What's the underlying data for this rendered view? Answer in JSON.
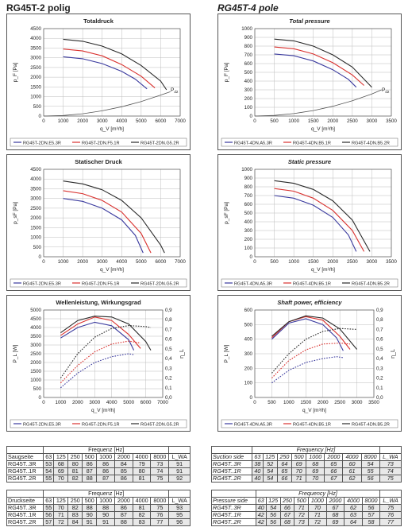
{
  "headings": {
    "left": "RG45T-2 polig",
    "right": "RG45T-4 pole"
  },
  "charts": [
    {
      "id": "c1",
      "title": "Totaldruck",
      "ylabel": "p_F [Pa]",
      "xlabel": "q_V [m³/h]",
      "y2label": "",
      "xmax": 7000,
      "xstep": 1000,
      "ymax": 4500,
      "ystep": 500,
      "y2max": null,
      "y2step": null,
      "annotation": "P_d2",
      "bold_italic": false
    },
    {
      "id": "c2",
      "title": "Total pressure",
      "ylabel": "p_F [Pa]",
      "xlabel": "q_V [m³/h]",
      "y2label": "",
      "xmax": 3500,
      "xstep": 500,
      "ymax": 1000,
      "ystep": 100,
      "y2max": null,
      "y2step": null,
      "annotation": "P_d2",
      "bold_italic": true
    },
    {
      "id": "c3",
      "title": "Statischer Druck",
      "ylabel": "p_sF [Pa]",
      "xlabel": "q_V [m³/h]",
      "y2label": "",
      "xmax": 7000,
      "xstep": 1000,
      "ymax": 4500,
      "ystep": 500,
      "y2max": null,
      "y2step": null,
      "annotation": "",
      "bold_italic": false
    },
    {
      "id": "c4",
      "title": "Static pressure",
      "ylabel": "p_sF [Pa]",
      "xlabel": "q_V [m³/h]",
      "y2label": "",
      "xmax": 3500,
      "xstep": 500,
      "ymax": 1000,
      "ystep": 100,
      "y2max": null,
      "y2step": null,
      "annotation": "",
      "bold_italic": true
    },
    {
      "id": "c5",
      "title": "Wellenleistung, Wirkungsgrad",
      "ylabel": "P_L [W]",
      "xlabel": "q_V [m³/h]",
      "y2label": "η_L",
      "xmax": 7000,
      "xstep": 1000,
      "ymax": 5000,
      "ystep": 500,
      "y2max": 0.9,
      "y2step": 0.1,
      "annotation": "",
      "bold_italic": false
    },
    {
      "id": "c6",
      "title": "Shaft power, efficiency",
      "ylabel": "P_L [W]",
      "xlabel": "q_V [m³/h]",
      "y2label": "η_L",
      "xmax": 3500,
      "xstep": 500,
      "ymax": 600,
      "ystep": 100,
      "y2max": 0.9,
      "y2step": 0.1,
      "annotation": "",
      "bold_italic": true
    }
  ],
  "legends": {
    "left": [
      "RG45T-2DN.E5.3R",
      "RG45T-2DN.F5.1R",
      "RG45T-2DN.G5.2R"
    ],
    "right": [
      "RG45T-4DN.A5.3R",
      "RG45T-4DN.B5.1R",
      "RG45T-4DN.B5.2R"
    ]
  },
  "colors": {
    "s1": "#3a3a9e",
    "s2": "#d9312e",
    "s3": "#2a2a2a"
  },
  "tables": {
    "left_top": {
      "header": "Frequenz [Hz]",
      "first": "Saugseite",
      "cols": [
        "63",
        "125",
        "250",
        "500",
        "1000",
        "2000",
        "4000",
        "8000",
        "L_WA"
      ],
      "rows": [
        [
          "RG45T..3R",
          "53",
          "68",
          "80",
          "86",
          "86",
          "84",
          "79",
          "73",
          "91"
        ],
        [
          "RG45T..1R",
          "54",
          "69",
          "81",
          "87",
          "86",
          "85",
          "80",
          "74",
          "91"
        ],
        [
          "RG45T..2R",
          "55",
          "70",
          "82",
          "88",
          "87",
          "86",
          "81",
          "75",
          "92"
        ]
      ]
    },
    "right_top": {
      "header": "Frequency [Hz]",
      "first": "Suction side",
      "cols": [
        "63",
        "125",
        "250",
        "500",
        "1000",
        "2000",
        "4000",
        "8000",
        "L_WA"
      ],
      "rows": [
        [
          "RG45T..3R",
          "38",
          "52",
          "64",
          "69",
          "68",
          "65",
          "60",
          "54",
          "73"
        ],
        [
          "RG45T..1R",
          "40",
          "54",
          "65",
          "70",
          "69",
          "66",
          "61",
          "55",
          "74"
        ],
        [
          "RG45T..2R",
          "40",
          "54",
          "66",
          "71",
          "70",
          "67",
          "62",
          "56",
          "75"
        ]
      ]
    },
    "left_bottom": {
      "header": "Frequenz [Hz]",
      "first": "Druckseite",
      "cols": [
        "63",
        "125",
        "250",
        "500",
        "1000",
        "2000",
        "4000",
        "8000",
        "L_WA"
      ],
      "rows": [
        [
          "RG45T..3R",
          "55",
          "70",
          "82",
          "88",
          "88",
          "86",
          "81",
          "75",
          "93"
        ],
        [
          "RG45T..1R",
          "56",
          "71",
          "83",
          "90",
          "90",
          "87",
          "82",
          "76",
          "95"
        ],
        [
          "RG45T..2R",
          "57",
          "72",
          "84",
          "91",
          "91",
          "88",
          "83",
          "77",
          "96"
        ]
      ]
    },
    "right_bottom": {
      "header": "Frequency [Hz]",
      "first": "Pressure side",
      "cols": [
        "63",
        "125",
        "250",
        "500",
        "1000",
        "2000",
        "4000",
        "8000",
        "L_WA"
      ],
      "rows": [
        [
          "RG45T..3R",
          "40",
          "54",
          "66",
          "71",
          "70",
          "67",
          "62",
          "56",
          "75"
        ],
        [
          "RG45T..1R",
          "42",
          "56",
          "67",
          "72",
          "71",
          "68",
          "63",
          "57",
          "76"
        ],
        [
          "RG45T..2R",
          "42",
          "56",
          "68",
          "73",
          "72",
          "69",
          "64",
          "58",
          "77"
        ]
      ]
    }
  },
  "chart_data": [
    {
      "type": "line",
      "id": "c1",
      "title": "Totaldruck",
      "xlabel": "q_V [m³/h]",
      "ylabel": "p_F [Pa]",
      "xlim": [
        0,
        7000
      ],
      "ylim": [
        0,
        4500
      ],
      "grid": true,
      "series": [
        {
          "name": "RG45T-2DN.E5.3R",
          "x": [
            1000,
            2000,
            3000,
            4000,
            4700,
            5300
          ],
          "y": [
            3050,
            2950,
            2700,
            2300,
            1900,
            1400
          ]
        },
        {
          "name": "RG45T-2DN.F5.1R",
          "x": [
            1000,
            2000,
            3000,
            4000,
            5000,
            5700
          ],
          "y": [
            3450,
            3350,
            3100,
            2650,
            2050,
            1450
          ]
        },
        {
          "name": "RG45T-2DN.G5.2R",
          "x": [
            1000,
            2000,
            3000,
            4000,
            5000,
            6000,
            6300
          ],
          "y": [
            3950,
            3850,
            3600,
            3200,
            2600,
            1800,
            1350
          ]
        },
        {
          "name": "P_d2",
          "x": [
            0,
            1000,
            2000,
            3000,
            4000,
            5000,
            6000,
            6500
          ],
          "y": [
            0,
            30,
            120,
            270,
            480,
            750,
            1080,
            1250
          ]
        }
      ]
    },
    {
      "type": "line",
      "id": "c2",
      "title": "Total pressure",
      "xlabel": "q_V [m³/h]",
      "ylabel": "p_F [Pa]",
      "xlim": [
        0,
        3500
      ],
      "ylim": [
        0,
        1000
      ],
      "grid": true,
      "series": [
        {
          "name": "RG45T-4DN.A5.3R",
          "x": [
            500,
            1000,
            1500,
            2000,
            2400,
            2600
          ],
          "y": [
            710,
            690,
            630,
            530,
            420,
            330
          ]
        },
        {
          "name": "RG45T-4DN.B5.1R",
          "x": [
            500,
            1000,
            1500,
            2000,
            2500,
            2800
          ],
          "y": [
            790,
            770,
            710,
            610,
            470,
            350
          ]
        },
        {
          "name": "RG45T-4DN.B5.2R",
          "x": [
            500,
            1000,
            1500,
            2000,
            2500,
            3000
          ],
          "y": [
            880,
            860,
            800,
            700,
            560,
            330
          ]
        },
        {
          "name": "P_d2",
          "x": [
            0,
            500,
            1000,
            1500,
            2000,
            2500,
            3000,
            3250
          ],
          "y": [
            0,
            7,
            28,
            63,
            112,
            175,
            252,
            300
          ]
        }
      ]
    },
    {
      "type": "line",
      "id": "c3",
      "title": "Statischer Druck",
      "xlabel": "q_V [m³/h]",
      "ylabel": "p_sF [Pa]",
      "xlim": [
        0,
        7000
      ],
      "ylim": [
        0,
        4500
      ],
      "grid": true,
      "series": [
        {
          "name": "RG45T-2DN.E5.3R",
          "x": [
            1000,
            2000,
            3000,
            4000,
            4700,
            5100
          ],
          "y": [
            3000,
            2850,
            2500,
            1900,
            1100,
            200
          ]
        },
        {
          "name": "RG45T-2DN.F5.1R",
          "x": [
            1000,
            2000,
            3000,
            4000,
            5000,
            5500
          ],
          "y": [
            3400,
            3250,
            2900,
            2300,
            1200,
            200
          ]
        },
        {
          "name": "RG45T-2DN.G5.2R",
          "x": [
            1000,
            2000,
            3000,
            4000,
            5000,
            6000,
            6200
          ],
          "y": [
            3900,
            3750,
            3450,
            2900,
            2000,
            600,
            200
          ]
        }
      ]
    },
    {
      "type": "line",
      "id": "c4",
      "title": "Static pressure",
      "xlabel": "q_V [m³/h]",
      "ylabel": "p_sF [Pa]",
      "xlim": [
        0,
        3500
      ],
      "ylim": [
        0,
        1000
      ],
      "grid": true,
      "series": [
        {
          "name": "RG45T-4DN.A5.3R",
          "x": [
            500,
            1000,
            1500,
            2000,
            2400,
            2600
          ],
          "y": [
            700,
            670,
            590,
            450,
            250,
            60
          ]
        },
        {
          "name": "RG45T-4DN.B5.1R",
          "x": [
            500,
            1000,
            1500,
            2000,
            2500,
            2800
          ],
          "y": [
            780,
            750,
            670,
            530,
            300,
            60
          ]
        },
        {
          "name": "RG45T-4DN.B5.2R",
          "x": [
            500,
            1000,
            1500,
            2000,
            2500,
            2950
          ],
          "y": [
            870,
            840,
            770,
            640,
            420,
            60
          ]
        }
      ]
    },
    {
      "type": "line",
      "id": "c5",
      "title": "Wellenleistung, Wirkungsgrad",
      "xlabel": "q_V [m³/h]",
      "ylabel": "P_L [W]",
      "y2label": "η_L",
      "xlim": [
        0,
        7000
      ],
      "ylim": [
        0,
        5000
      ],
      "y2lim": [
        0,
        0.9
      ],
      "grid": true,
      "series": [
        {
          "name": "RG45T-2DN.E5.3R",
          "axis": "y",
          "x": [
            1000,
            2000,
            3000,
            4000,
            5000,
            5300
          ],
          "y": [
            3400,
            4000,
            4300,
            4100,
            3300,
            2700
          ]
        },
        {
          "name": "RG45T-2DN.F5.1R",
          "axis": "y",
          "x": [
            1000,
            2000,
            3000,
            4000,
            5000,
            5700
          ],
          "y": [
            3550,
            4200,
            4600,
            4400,
            3600,
            2800
          ]
        },
        {
          "name": "RG45T-2DN.G5.2R",
          "axis": "y",
          "x": [
            1000,
            2000,
            3000,
            4000,
            5000,
            6000,
            6300
          ],
          "y": [
            3700,
            4400,
            4650,
            4600,
            4200,
            3200,
            2700
          ]
        },
        {
          "name": "RG45T-2DN.E5.3R",
          "axis": "y2",
          "x": [
            1000,
            2000,
            3000,
            4000,
            5000,
            5300
          ],
          "y": [
            0.1,
            0.25,
            0.36,
            0.42,
            0.45,
            0.44
          ]
        },
        {
          "name": "RG45T-2DN.F5.1R",
          "axis": "y2",
          "x": [
            1000,
            2000,
            3000,
            4000,
            5000,
            5700
          ],
          "y": [
            0.15,
            0.33,
            0.47,
            0.55,
            0.58,
            0.56
          ]
        },
        {
          "name": "RG45T-2DN.G5.2R",
          "axis": "y2",
          "x": [
            1000,
            2000,
            3000,
            4000,
            5000,
            6000,
            6300
          ],
          "y": [
            0.2,
            0.45,
            0.62,
            0.71,
            0.74,
            0.73,
            0.72
          ]
        }
      ]
    },
    {
      "type": "line",
      "id": "c6",
      "title": "Shaft power, efficiency",
      "xlabel": "q_V [m³/h]",
      "ylabel": "P_L [W]",
      "y2label": "η_L",
      "xlim": [
        0,
        3500
      ],
      "ylim": [
        0,
        600
      ],
      "y2lim": [
        0,
        0.9
      ],
      "grid": true,
      "series": [
        {
          "name": "RG45T-4DN.A5.3R",
          "axis": "y",
          "x": [
            500,
            1000,
            1500,
            2000,
            2400,
            2600
          ],
          "y": [
            400,
            510,
            540,
            500,
            410,
            320
          ]
        },
        {
          "name": "RG45T-4DN.B5.1R",
          "axis": "y",
          "x": [
            500,
            1000,
            1500,
            2000,
            2500,
            2800
          ],
          "y": [
            410,
            520,
            555,
            530,
            420,
            330
          ]
        },
        {
          "name": "RG45T-4DN.B5.2R",
          "axis": "y",
          "x": [
            500,
            1000,
            1500,
            2000,
            2500,
            3000
          ],
          "y": [
            420,
            520,
            560,
            545,
            470,
            330
          ]
        },
        {
          "name": "RG45T-4DN.A5.3R",
          "axis": "y2",
          "x": [
            500,
            1000,
            1500,
            2000,
            2400,
            2600
          ],
          "y": [
            0.15,
            0.28,
            0.36,
            0.4,
            0.42,
            0.41
          ]
        },
        {
          "name": "RG45T-4DN.B5.1R",
          "axis": "y2",
          "x": [
            500,
            1000,
            1500,
            2000,
            2500,
            2800
          ],
          "y": [
            0.2,
            0.38,
            0.49,
            0.55,
            0.56,
            0.55
          ]
        },
        {
          "name": "RG45T-4DN.B5.2R",
          "axis": "y2",
          "x": [
            500,
            1000,
            1500,
            2000,
            2500,
            3000
          ],
          "y": [
            0.25,
            0.45,
            0.6,
            0.68,
            0.71,
            0.7
          ]
        }
      ]
    }
  ]
}
